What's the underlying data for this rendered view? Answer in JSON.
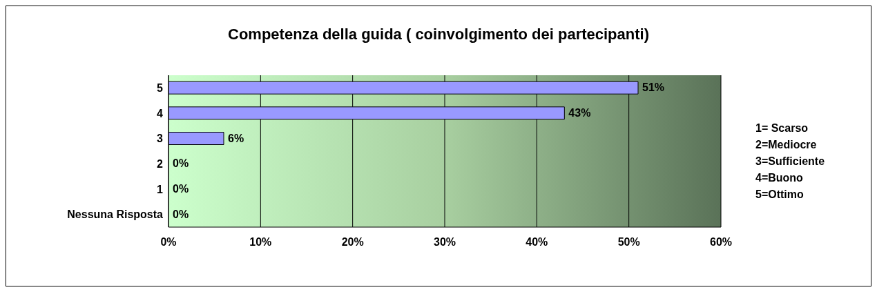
{
  "chart_data": {
    "type": "bar",
    "orientation": "horizontal",
    "title": "Competenza della guida ( coinvolgimento dei partecipanti)",
    "categories": [
      "5",
      "4",
      "3",
      "2",
      "1",
      "Nessuna Risposta"
    ],
    "values": [
      51,
      43,
      6,
      0,
      0,
      0
    ],
    "value_labels": [
      "51%",
      "43%",
      "6%",
      "0%",
      "0%",
      "0%"
    ],
    "color": "#9999ff",
    "xlim": [
      0,
      60
    ],
    "xticks": [
      {
        "value": 0,
        "label": "0%"
      },
      {
        "value": 10,
        "label": "10%"
      },
      {
        "value": 20,
        "label": "20%"
      },
      {
        "value": 30,
        "label": "30%"
      },
      {
        "value": 40,
        "label": "40%"
      },
      {
        "value": 50,
        "label": "50%"
      },
      {
        "value": 60,
        "label": "60%"
      }
    ],
    "grid": "x",
    "annotations": [
      "1= Scarso",
      "2=Mediocre",
      "3=Sufficiente",
      "4=Buono",
      "5=Ottimo"
    ]
  }
}
